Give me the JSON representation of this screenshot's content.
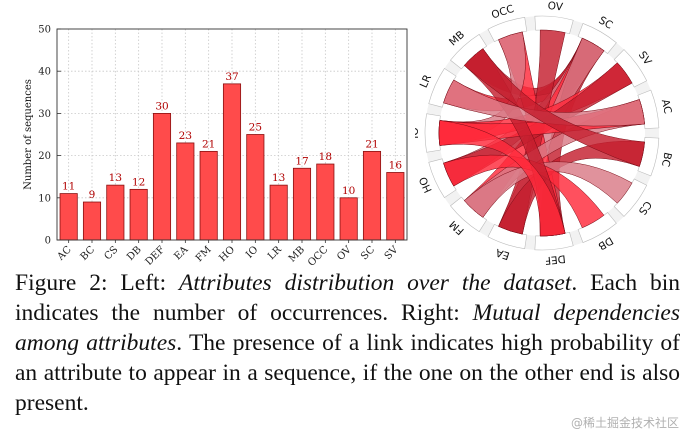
{
  "chart_data": [
    {
      "type": "bar",
      "categories": [
        "AC",
        "BC",
        "CS",
        "DB",
        "DEF",
        "EA",
        "FM",
        "HO",
        "IO",
        "LR",
        "MB",
        "OCC",
        "OV",
        "SC",
        "SV"
      ],
      "values": [
        11,
        9,
        13,
        12,
        30,
        23,
        21,
        37,
        25,
        13,
        17,
        18,
        10,
        21,
        16
      ],
      "ylabel": "Number of sequences",
      "ylim": [
        0,
        50
      ],
      "yticks": [
        0,
        10,
        20,
        30,
        40,
        50
      ],
      "grid": true,
      "bar_color": "#ff4b4b",
      "label_color": "#b00000"
    },
    {
      "type": "chord",
      "labels": [
        "AC",
        "BC",
        "CS",
        "DB",
        "DEF",
        "EA",
        "FM",
        "HO",
        "IO",
        "LR",
        "MB",
        "OCC",
        "OV",
        "SC",
        "SV"
      ],
      "links": [
        [
          "SC",
          "LR"
        ],
        [
          "SC",
          "MB"
        ],
        [
          "SC",
          "HO"
        ],
        [
          "SC",
          "FM"
        ],
        [
          "SC",
          "DEF"
        ],
        [
          "SC",
          "EA"
        ],
        [
          "OCC",
          "DEF"
        ],
        [
          "OV",
          "EA"
        ],
        [
          "OCC",
          "IO"
        ],
        [
          "SV",
          "IO"
        ],
        [
          "SV",
          "HO"
        ],
        [
          "AC",
          "FM"
        ],
        [
          "AC",
          "IO"
        ],
        [
          "BC",
          "EA"
        ],
        [
          "CS",
          "FM"
        ],
        [
          "DB",
          "HO"
        ],
        [
          "MB",
          "DEF"
        ],
        [
          "LR",
          "AC"
        ],
        [
          "DEF",
          "IO"
        ],
        [
          "MB",
          "BC"
        ]
      ],
      "colors": [
        "#ff2a3a",
        "#c41e2e",
        "#d97a86"
      ]
    }
  ],
  "caption": {
    "p1": "Figure 2:  Left: ",
    "p2": "Attributes distribution over the dataset",
    "p3": ". Each bin indicates the number of occurrences. Right: ",
    "p4": "Mutual dependencies among attributes",
    "p5": ". The presence of a link indicates high probability of an attribute to appear in a sequence, if the one on the other end is also present."
  },
  "watermark": "@稀土掘金技术社区"
}
